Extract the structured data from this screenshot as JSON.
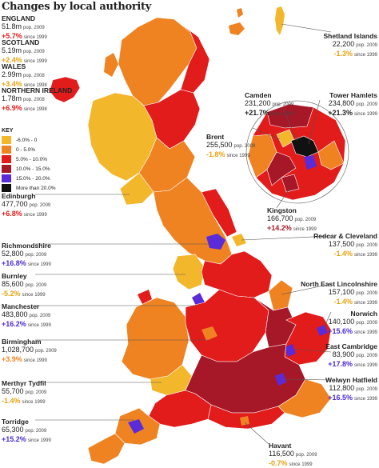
{
  "title": "Changes by local authority",
  "colors": {
    "neg": "#f3b72c",
    "c0_5": "#ef8322",
    "c5_10": "#e21b1b",
    "c10_15": "#a61828",
    "c15_20": "#5a2bd8",
    "c20p": "#111111",
    "text_neg": "#e5a312",
    "text_pos": "#e21b1b",
    "text_purple": "#4a2bd0",
    "text_orange": "#ef8322"
  },
  "key": {
    "title": "KEY",
    "items": [
      {
        "label": "-6.0% - 0",
        "color": "#f3b72c"
      },
      {
        "label": "0 - 5.0%",
        "color": "#ef8322"
      },
      {
        "label": "5.0% - 10.0%",
        "color": "#e21b1b"
      },
      {
        "label": "10.0% - 15.0%",
        "color": "#a61828"
      },
      {
        "label": "15.0% - 20.0%",
        "color": "#5a2bd8"
      },
      {
        "label": "More than 20.0%",
        "color": "#111111"
      }
    ]
  },
  "nations": [
    {
      "name": "ENGLAND",
      "pop": "51.8m",
      "pop_note": "pop. 2009",
      "change": "+5.7%",
      "change_note": "since 1999"
    },
    {
      "name": "SCOTLAND",
      "pop": "5.19m",
      "pop_note": "pop. 2009",
      "change": "+2.4%",
      "change_note": "since 1999"
    },
    {
      "name": "WALES",
      "pop": "2.99m",
      "pop_note": "pop. 2008",
      "change": "+3.4%",
      "change_note": "since 1998"
    },
    {
      "name": "NORTHERN IRELAND",
      "pop": "1.78m",
      "pop_note": "pop. 2008",
      "change": "+6.9%",
      "change_note": "since 1998"
    }
  ],
  "left_labels": [
    {
      "name": "Edinburgh",
      "pop": "477,700",
      "pop_note": "pop. 2009",
      "change": "+6.8%",
      "change_note": "since 1999"
    },
    {
      "name": "Richmondshire",
      "pop": "52,800",
      "pop_note": "pop. 2009",
      "change": "+16.8%",
      "change_note": "since 1999"
    },
    {
      "name": "Burnley",
      "pop": "85,600",
      "pop_note": "pop. 2009",
      "change": "-5.2%",
      "change_note": "since 1999"
    },
    {
      "name": "Manchester",
      "pop": "483,800",
      "pop_note": "pop. 2009",
      "change": "+16.2%",
      "change_note": "since 1999"
    },
    {
      "name": "Birmingham",
      "pop": "1,028,700",
      "pop_note": "pop. 2009",
      "change": "+3.9%",
      "change_note": "since 1999"
    },
    {
      "name": "Merthyr Tydfil",
      "pop": "55,700",
      "pop_note": "pop. 2009",
      "change": "-1.4%",
      "change_note": "since 1999"
    },
    {
      "name": "Torridge",
      "pop": "65,300",
      "pop_note": "pop. 2009",
      "change": "+15.2%",
      "change_note": "since 1999"
    }
  ],
  "right_labels": [
    {
      "name": "Shetland Islands",
      "pop": "22,200",
      "pop_note": "pop. 2009",
      "change": "-1.3%",
      "change_note": "since 1999"
    },
    {
      "name": "Tower Hamlets",
      "pop": "234,800",
      "pop_note": "pop. 2009",
      "change": "+21.3%",
      "change_note": "since 1999"
    },
    {
      "name": "Redcar & Cleveland",
      "pop": "137,500",
      "pop_note": "pop. 2009",
      "change": "-1.4%",
      "change_note": "since 1999"
    },
    {
      "name": "North East Lincolnshire",
      "pop": "157,100",
      "pop_note": "pop. 2009",
      "change": "-1.4%",
      "change_note": "since 1999"
    },
    {
      "name": "Norwich",
      "pop": "140,100",
      "pop_note": "pop. 2009",
      "change": "+15.6%",
      "change_note": "since 1999"
    },
    {
      "name": "East Cambridge",
      "pop": "83,900",
      "pop_note": "pop. 2009",
      "change": "+17.8%",
      "change_note": "since 1999"
    },
    {
      "name": "Welwyn Hatfield",
      "pop": "112,800",
      "pop_note": "pop. 2009",
      "change": "+16.5%",
      "change_note": "since 1999"
    }
  ],
  "london_labels": [
    {
      "name": "Camden",
      "pop": "231,200",
      "pop_note": "pop. 2009",
      "change": "+21.7%",
      "change_note": "since 1999"
    },
    {
      "name": "Brent",
      "pop": "255,500",
      "pop_note": "pop. 2009",
      "change": "-1.8%",
      "change_note": "since 1999"
    },
    {
      "name": "Kingston",
      "pop": "166,700",
      "pop_note": "pop. 2009",
      "change": "+14.2%",
      "change_note": "since 1999"
    },
    {
      "name": "Havant",
      "pop": "116,500",
      "pop_note": "pop. 2009",
      "change": "-0.7%",
      "change_note": "since 1999"
    }
  ]
}
